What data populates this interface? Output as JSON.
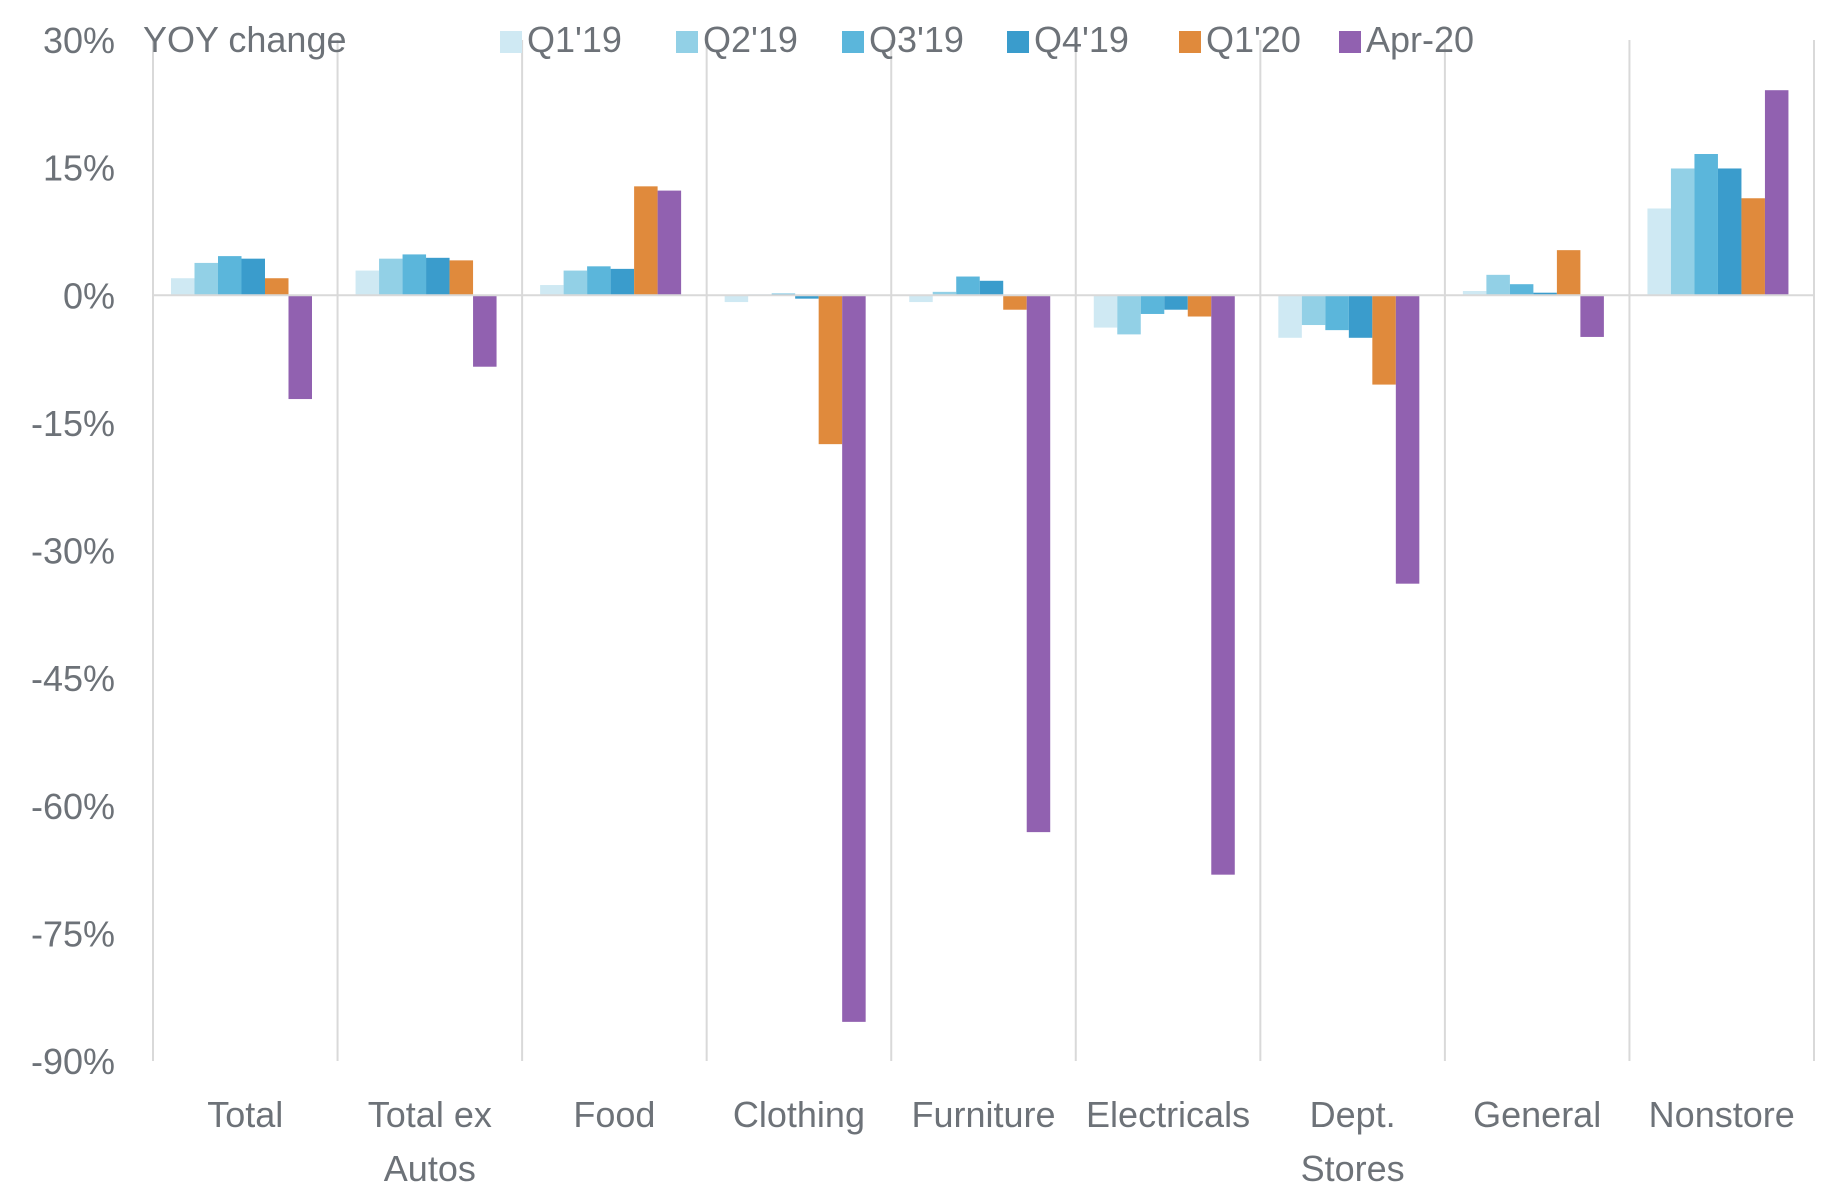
{
  "chart_data": {
    "type": "bar",
    "y_title": "YOY change",
    "ylim": [
      -90,
      30
    ],
    "yticks": [
      "30%",
      "15%",
      "0%",
      "-15%",
      "-30%",
      "-45%",
      "-60%",
      "-75%",
      "-90%"
    ],
    "ytick_values": [
      30,
      15,
      0,
      -15,
      -30,
      -45,
      -60,
      -75,
      -90
    ],
    "unit": "%",
    "legend_position": "top",
    "grid": "vertical category separators",
    "categories": [
      "Total",
      "Total ex\nAutos",
      "Food",
      "Clothing",
      "Furniture",
      "Electricals",
      "Dept.\nStores",
      "General",
      "Nonstore"
    ],
    "series": [
      {
        "name": "Q1'19",
        "color": "#cfe9f3",
        "values": [
          2.0,
          2.9,
          1.2,
          -0.8,
          -0.8,
          -3.8,
          -5.0,
          0.5,
          10.2
        ]
      },
      {
        "name": "Q2'19",
        "color": "#92d0e6",
        "values": [
          3.8,
          4.3,
          2.9,
          0.1,
          0.4,
          -4.6,
          -3.5,
          2.4,
          14.9
        ]
      },
      {
        "name": "Q3'19",
        "color": "#5bb6db",
        "values": [
          4.6,
          4.8,
          3.4,
          0.2,
          2.2,
          -2.2,
          -4.1,
          1.3,
          16.6
        ]
      },
      {
        "name": "Q4'19",
        "color": "#3a9ccc",
        "values": [
          4.3,
          4.4,
          3.1,
          -0.4,
          1.7,
          -1.7,
          -5.0,
          0.3,
          14.9
        ]
      },
      {
        "name": "Q1'20",
        "color": "#e08a3c",
        "values": [
          2.0,
          4.1,
          12.8,
          -17.5,
          -1.7,
          -2.5,
          -10.5,
          5.3,
          11.4
        ]
      },
      {
        "name": "Apr-20",
        "color": "#9161b0",
        "values": [
          -12.2,
          -8.4,
          12.3,
          -85.4,
          -63.1,
          -68.1,
          -33.9,
          -4.9,
          24.1
        ]
      }
    ]
  }
}
